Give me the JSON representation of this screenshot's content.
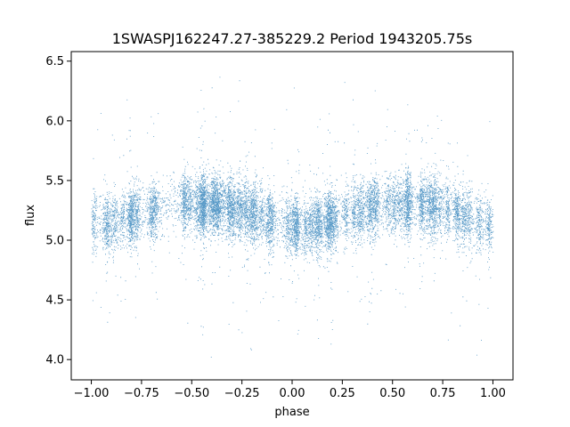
{
  "chart_data": {
    "type": "scatter",
    "title": "1SWASPJ162247.27-385229.2 Period 1943205.75s",
    "xlabel": "phase",
    "ylabel": "flux",
    "xlim": [
      -1.1,
      1.1
    ],
    "ylim": [
      3.83,
      6.58
    ],
    "xticks": [
      -1.0,
      -0.75,
      -0.5,
      -0.25,
      0.0,
      0.25,
      0.5,
      0.75,
      1.0
    ],
    "xtick_labels": [
      "−1.00",
      "−0.75",
      "−0.50",
      "−0.25",
      "0.00",
      "0.25",
      "0.50",
      "0.75",
      "1.00"
    ],
    "yticks": [
      4.0,
      4.5,
      5.0,
      5.5,
      6.0,
      6.5
    ],
    "ytick_labels": [
      "4.0",
      "4.5",
      "5.0",
      "5.5",
      "6.0",
      "6.5"
    ],
    "grid": false,
    "point_color": "#1f77b4",
    "series": [
      {
        "phase_range": [
          -1.0,
          1.0
        ],
        "flux_median": 5.15,
        "flux_core_spread": 0.12,
        "flux_min": 3.95,
        "flux_max": 6.45,
        "approx_points": 14000,
        "note_modulation": [
          {
            "phase": -0.95,
            "flux": 5.12
          },
          {
            "phase": -0.55,
            "flux": 5.32
          },
          {
            "phase": -0.3,
            "flux": 5.28
          },
          {
            "phase": 0.05,
            "flux": 5.1
          },
          {
            "phase": 0.45,
            "flux": 5.3
          },
          {
            "phase": 0.7,
            "flux": 5.3
          },
          {
            "phase": 1.0,
            "flux": 5.12
          }
        ]
      }
    ]
  }
}
